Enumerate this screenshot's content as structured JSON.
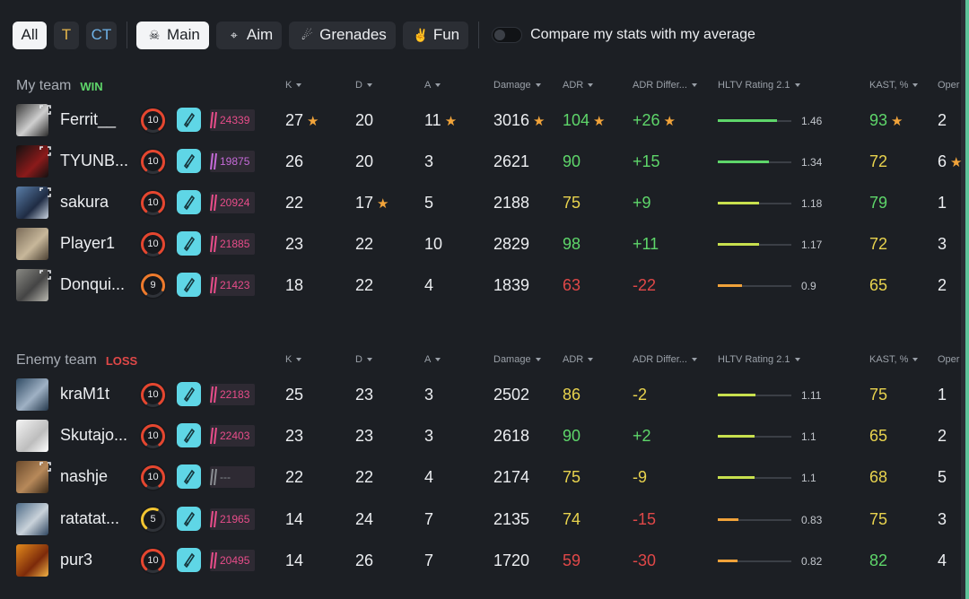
{
  "toolbar": {
    "sides": [
      "All",
      "T",
      "CT"
    ],
    "tabs": [
      {
        "label": "Main",
        "icon": "skull-icon",
        "glyph": "☠"
      },
      {
        "label": "Aim",
        "icon": "crosshair-icon",
        "glyph": "⌖"
      },
      {
        "label": "Grenades",
        "icon": "grenade-icon",
        "glyph": "☄"
      },
      {
        "label": "Fun",
        "icon": "fun-icon",
        "glyph": "✌"
      }
    ],
    "compare_label": "Compare my stats with my average"
  },
  "columns": [
    "K",
    "D",
    "A",
    "Damage",
    "ADR",
    "ADR Differ...",
    "HLTV Rating 2.1",
    "KAST, %",
    "Oper"
  ],
  "my_team": {
    "title": "My team",
    "result": "WIN",
    "players": [
      {
        "name": "Ferrit__",
        "level": "10",
        "elo": "24339",
        "k": "27",
        "k_star": true,
        "d": "20",
        "d_star": false,
        "a": "11",
        "a_star": true,
        "damage": "3016",
        "dmg_star": true,
        "adr": "104",
        "adr_star": true,
        "adr_color": "green",
        "diff": "+26",
        "diff_star": true,
        "diff_color": "green",
        "hltv": "1.46",
        "hltv_value": 1.46,
        "hltv_color": "#5ed66a",
        "kast": "93",
        "kast_star": true,
        "kast_color": "green",
        "opening": "2",
        "open_star": false
      },
      {
        "name": "TYUNB...",
        "level": "10",
        "elo": "19875",
        "k": "26",
        "k_star": false,
        "d": "20",
        "d_star": false,
        "a": "3",
        "a_star": false,
        "damage": "2621",
        "dmg_star": false,
        "adr": "90",
        "adr_star": false,
        "adr_color": "green",
        "diff": "+15",
        "diff_star": false,
        "diff_color": "green",
        "hltv": "1.34",
        "hltv_value": 1.34,
        "hltv_color": "#5ed66a",
        "kast": "72",
        "kast_star": false,
        "kast_color": "yellow",
        "opening": "6",
        "open_star": true
      },
      {
        "name": "sakura",
        "level": "10",
        "elo": "20924",
        "k": "22",
        "k_star": false,
        "d": "17",
        "d_star": true,
        "a": "5",
        "a_star": false,
        "damage": "2188",
        "dmg_star": false,
        "adr": "75",
        "adr_star": false,
        "adr_color": "yellow",
        "diff": "+9",
        "diff_star": false,
        "diff_color": "green",
        "hltv": "1.18",
        "hltv_value": 1.18,
        "hltv_color": "#c8e04e",
        "kast": "79",
        "kast_star": false,
        "kast_color": "green",
        "opening": "1",
        "open_star": false
      },
      {
        "name": "Player1",
        "level": "10",
        "elo": "21885",
        "k": "23",
        "k_star": false,
        "d": "22",
        "d_star": false,
        "a": "10",
        "a_star": false,
        "damage": "2829",
        "dmg_star": false,
        "adr": "98",
        "adr_star": false,
        "adr_color": "green",
        "diff": "+11",
        "diff_star": false,
        "diff_color": "green",
        "hltv": "1.17",
        "hltv_value": 1.17,
        "hltv_color": "#c8e04e",
        "kast": "72",
        "kast_star": false,
        "kast_color": "yellow",
        "opening": "3",
        "open_star": false
      },
      {
        "name": "Donqui...",
        "level": "9",
        "elo": "21423",
        "k": "18",
        "k_star": false,
        "d": "22",
        "d_star": false,
        "a": "4",
        "a_star": false,
        "damage": "1839",
        "dmg_star": false,
        "adr": "63",
        "adr_star": false,
        "adr_color": "red",
        "diff": "-22",
        "diff_star": false,
        "diff_color": "red",
        "hltv": "0.9",
        "hltv_value": 0.9,
        "hltv_color": "#f0a23a",
        "kast": "65",
        "kast_star": false,
        "kast_color": "yellow",
        "opening": "2",
        "open_star": false
      }
    ]
  },
  "enemy_team": {
    "title": "Enemy team",
    "result": "LOSS",
    "players": [
      {
        "name": "kraM1t",
        "level": "10",
        "elo": "22183",
        "k": "25",
        "k_star": false,
        "d": "23",
        "d_star": false,
        "a": "3",
        "a_star": false,
        "damage": "2502",
        "dmg_star": false,
        "adr": "86",
        "adr_star": false,
        "adr_color": "yellow",
        "diff": "-2",
        "diff_star": false,
        "diff_color": "yellow",
        "hltv": "1.11",
        "hltv_value": 1.11,
        "hltv_color": "#c8e04e",
        "kast": "75",
        "kast_star": false,
        "kast_color": "yellow",
        "opening": "1",
        "open_star": false
      },
      {
        "name": "Skutajo...",
        "level": "10",
        "elo": "22403",
        "k": "23",
        "k_star": false,
        "d": "23",
        "d_star": false,
        "a": "3",
        "a_star": false,
        "damage": "2618",
        "dmg_star": false,
        "adr": "90",
        "adr_star": false,
        "adr_color": "green",
        "diff": "+2",
        "diff_star": false,
        "diff_color": "green",
        "hltv": "1.1",
        "hltv_value": 1.1,
        "hltv_color": "#c8e04e",
        "kast": "65",
        "kast_star": false,
        "kast_color": "yellow",
        "opening": "2",
        "open_star": false
      },
      {
        "name": "nashje",
        "level": "10",
        "elo": "---",
        "k": "22",
        "k_star": false,
        "d": "22",
        "d_star": false,
        "a": "4",
        "a_star": false,
        "damage": "2174",
        "dmg_star": false,
        "adr": "75",
        "adr_star": false,
        "adr_color": "yellow",
        "diff": "-9",
        "diff_star": false,
        "diff_color": "yellow",
        "hltv": "1.1",
        "hltv_value": 1.1,
        "hltv_color": "#c8e04e",
        "kast": "68",
        "kast_star": false,
        "kast_color": "yellow",
        "opening": "5",
        "open_star": false
      },
      {
        "name": "ratatat...",
        "level": "5",
        "elo": "21965",
        "k": "14",
        "k_star": false,
        "d": "24",
        "d_star": false,
        "a": "7",
        "a_star": false,
        "damage": "2135",
        "dmg_star": false,
        "adr": "74",
        "adr_star": false,
        "adr_color": "yellow",
        "diff": "-15",
        "diff_star": false,
        "diff_color": "red",
        "hltv": "0.83",
        "hltv_value": 0.83,
        "hltv_color": "#f0a23a",
        "kast": "75",
        "kast_star": false,
        "kast_color": "yellow",
        "opening": "3",
        "open_star": false
      },
      {
        "name": "pur3",
        "level": "10",
        "elo": "20495",
        "k": "14",
        "k_star": false,
        "d": "26",
        "d_star": false,
        "a": "7",
        "a_star": false,
        "damage": "1720",
        "dmg_star": false,
        "adr": "59",
        "adr_star": false,
        "adr_color": "red",
        "diff": "-30",
        "diff_star": false,
        "diff_color": "red",
        "hltv": "0.82",
        "hltv_value": 0.82,
        "hltv_color": "#f0a23a",
        "kast": "82",
        "kast_star": false,
        "kast_color": "green",
        "opening": "4",
        "open_star": false
      }
    ]
  },
  "colors": {
    "win": "#5ed66a",
    "loss": "#e04848",
    "star": "#f2a43a",
    "prime": "#5fd6e6",
    "level10": "#e5462f",
    "level9": "#ee7a2c",
    "level5": "#f2c531"
  }
}
